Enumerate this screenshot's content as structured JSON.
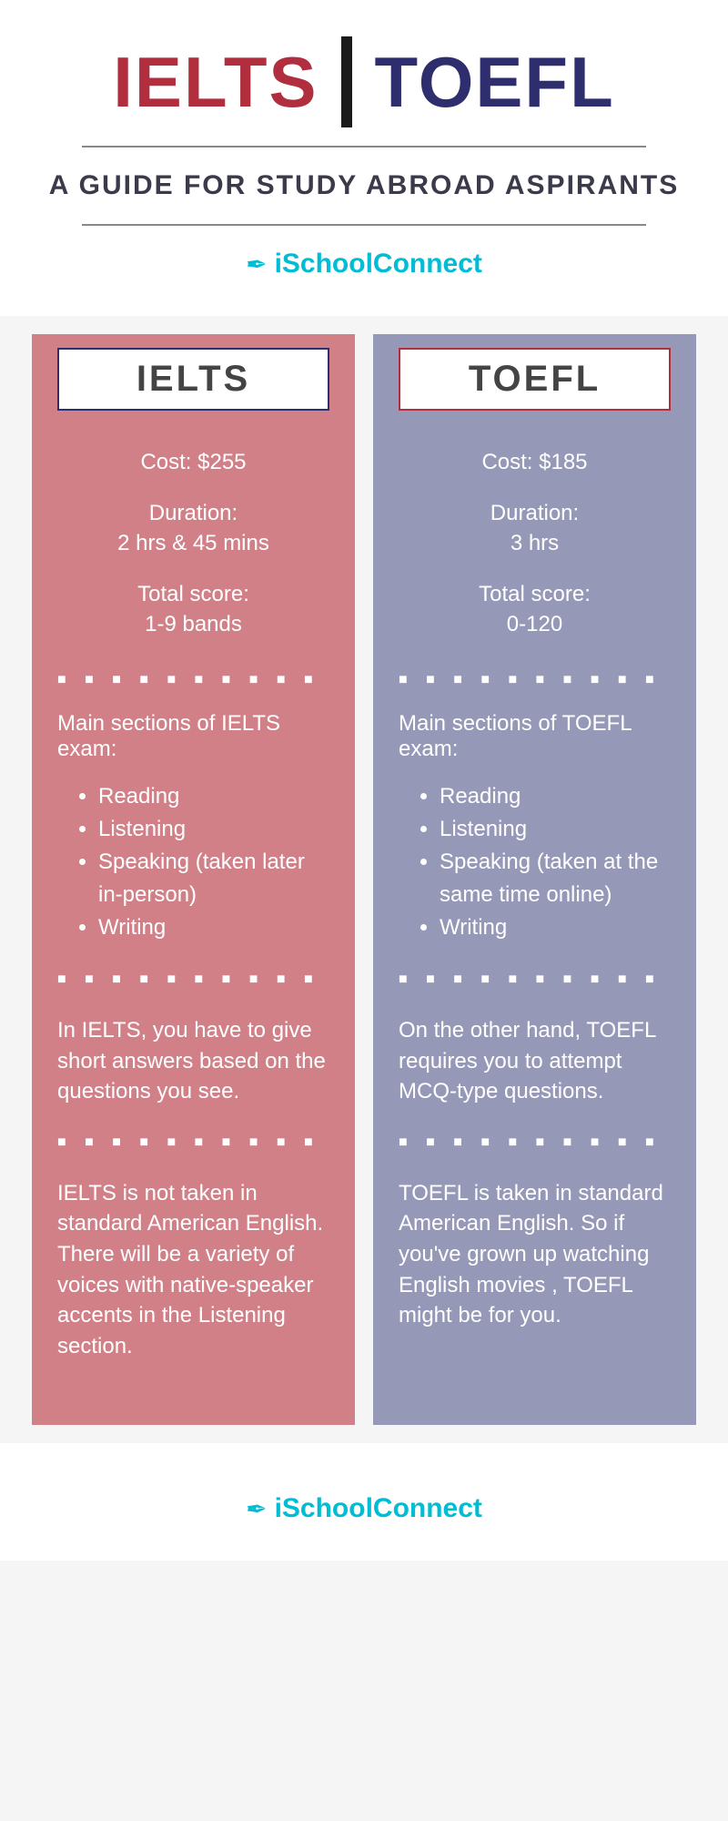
{
  "header": {
    "title_left": "IELTS",
    "title_right": "TOEFL",
    "subtitle": "A GUIDE FOR STUDY ABROAD ASPIRANTS",
    "logo_text": "iSchoolConnect"
  },
  "colors": {
    "ielts_red": "#b12e3e",
    "toefl_blue": "#2e2e6e",
    "ielts_bg": "#d28088",
    "toefl_bg": "#9698b8",
    "logo_color": "#00bcd4",
    "ielts_border": "#2e2e6e",
    "toefl_border": "#b12e3e"
  },
  "ielts": {
    "title": "IELTS",
    "stats": {
      "cost": "Cost: $255",
      "duration_label": "Duration:",
      "duration": "2 hrs & 45 mins",
      "score_label": "Total score:",
      "score": "1-9 bands"
    },
    "sections_title": "Main sections of IELTS exam:",
    "sections": [
      "Reading",
      "Listening",
      "Speaking (taken later in-person)",
      "Writing"
    ],
    "para1": "In IELTS, you have to give short answers based on the questions you see.",
    "para2": "IELTS is not taken in standard American English. There will be a variety of voices with native-speaker accents in the Listening section."
  },
  "toefl": {
    "title": "TOEFL",
    "stats": {
      "cost": "Cost: $185",
      "duration_label": "Duration:",
      "duration": "3 hrs",
      "score_label": "Total score:",
      "score": "0-120"
    },
    "sections_title": "Main sections of TOEFL exam:",
    "sections": [
      "Reading",
      "Listening",
      "Speaking (taken at the same time online)",
      "Writing"
    ],
    "para1": "On the other hand, TOEFL requires you to attempt MCQ-type questions.",
    "para2": "TOEFL is taken in standard American English. So if you've grown up watching English movies , TOEFL might be for you."
  },
  "footer": {
    "logo_text": "iSchoolConnect"
  },
  "dots": "■ ■ ■ ■ ■ ■ ■ ■ ■ ■ ■ ■ ■ ■"
}
